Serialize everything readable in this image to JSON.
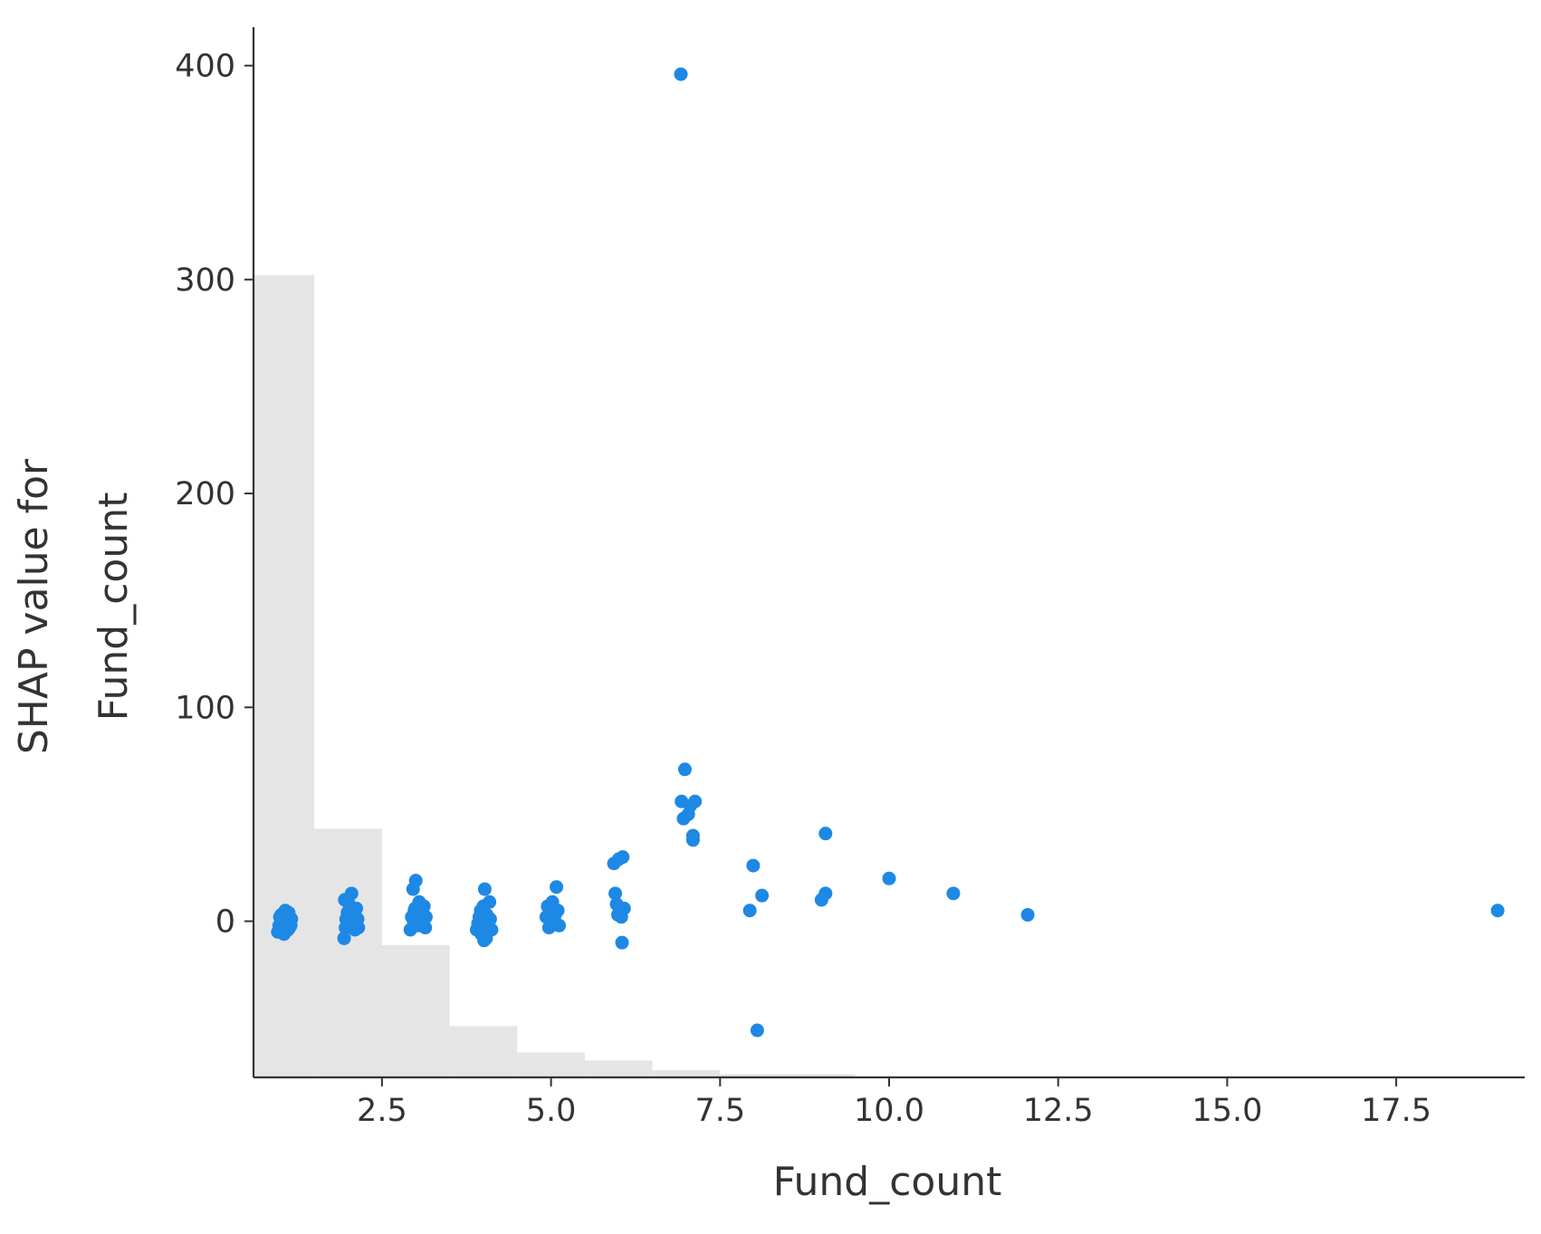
{
  "chart_data": {
    "type": "scatter",
    "title": "",
    "xlabel": "Fund_count",
    "ylabel_lines": [
      "SHAP value for",
      "Fund_count"
    ],
    "xlim": [
      0.6,
      19.4
    ],
    "ylim": [
      -73,
      418
    ],
    "x_ticks": [
      2.5,
      5.0,
      7.5,
      10.0,
      12.5,
      15.0,
      17.5
    ],
    "x_tick_labels": [
      "2.5",
      "5.0",
      "7.5",
      "10.0",
      "12.5",
      "15.0",
      "17.5"
    ],
    "y_ticks": [
      0,
      100,
      200,
      300,
      400
    ],
    "y_tick_labels": [
      "0",
      "100",
      "200",
      "300",
      "400"
    ],
    "grid": false,
    "point_color": "#1e88e5",
    "histogram_color": "#e5e5e5",
    "histogram": {
      "bin_edges": [
        0.5,
        1.5,
        2.5,
        3.5,
        4.5,
        5.5,
        6.5,
        7.5,
        8.5,
        9.5,
        10.5,
        11.5,
        12.5,
        19.5
      ],
      "relative_heights": [
        1.0,
        0.31,
        0.165,
        0.064,
        0.031,
        0.021,
        0.009,
        0.004,
        0.004,
        0.0,
        0.0,
        0.0,
        0.0
      ]
    },
    "points": [
      {
        "x": 0.98,
        "y": -2
      },
      {
        "x": 1.0,
        "y": -4
      },
      {
        "x": 1.02,
        "y": 0
      },
      {
        "x": 1.04,
        "y": -3
      },
      {
        "x": 1.06,
        "y": -1
      },
      {
        "x": 1.08,
        "y": 2
      },
      {
        "x": 1.1,
        "y": -2
      },
      {
        "x": 1.12,
        "y": 4
      },
      {
        "x": 1.14,
        "y": -1
      },
      {
        "x": 1.16,
        "y": 1
      },
      {
        "x": 0.96,
        "y": -5
      },
      {
        "x": 1.01,
        "y": 3
      },
      {
        "x": 1.05,
        "y": -6
      },
      {
        "x": 1.09,
        "y": 0
      },
      {
        "x": 1.13,
        "y": -3
      },
      {
        "x": 1.07,
        "y": 5
      },
      {
        "x": 1.11,
        "y": -4
      },
      {
        "x": 1.03,
        "y": 1
      },
      {
        "x": 1.15,
        "y": -2
      },
      {
        "x": 0.99,
        "y": 2
      },
      {
        "x": 1.94,
        "y": -8
      },
      {
        "x": 1.96,
        "y": -3
      },
      {
        "x": 1.97,
        "y": 1
      },
      {
        "x": 1.99,
        "y": 4
      },
      {
        "x": 2.0,
        "y": 9
      },
      {
        "x": 2.02,
        "y": 6
      },
      {
        "x": 2.04,
        "y": -2
      },
      {
        "x": 2.05,
        "y": 13
      },
      {
        "x": 2.07,
        "y": 0
      },
      {
        "x": 2.09,
        "y": 3
      },
      {
        "x": 2.1,
        "y": -4
      },
      {
        "x": 2.12,
        "y": 6
      },
      {
        "x": 2.14,
        "y": 1
      },
      {
        "x": 2.15,
        "y": -3
      },
      {
        "x": 1.95,
        "y": 10
      },
      {
        "x": 2.08,
        "y": -1
      },
      {
        "x": 2.92,
        "y": -4
      },
      {
        "x": 2.94,
        "y": 2
      },
      {
        "x": 2.96,
        "y": 15
      },
      {
        "x": 2.97,
        "y": -1
      },
      {
        "x": 2.99,
        "y": 6
      },
      {
        "x": 3.0,
        "y": 19
      },
      {
        "x": 3.02,
        "y": 3
      },
      {
        "x": 3.04,
        "y": -2
      },
      {
        "x": 3.05,
        "y": 9
      },
      {
        "x": 3.07,
        "y": 1
      },
      {
        "x": 3.09,
        "y": 4
      },
      {
        "x": 3.1,
        "y": 0
      },
      {
        "x": 3.12,
        "y": 7
      },
      {
        "x": 3.14,
        "y": -3
      },
      {
        "x": 3.15,
        "y": 2
      },
      {
        "x": 2.98,
        "y": 5
      },
      {
        "x": 3.06,
        "y": -1
      },
      {
        "x": 3.9,
        "y": -4
      },
      {
        "x": 3.92,
        "y": -1
      },
      {
        "x": 3.94,
        "y": 2
      },
      {
        "x": 3.96,
        "y": 5
      },
      {
        "x": 3.97,
        "y": -6
      },
      {
        "x": 3.99,
        "y": 0
      },
      {
        "x": 4.0,
        "y": 7
      },
      {
        "x": 4.02,
        "y": 15
      },
      {
        "x": 4.04,
        "y": -8
      },
      {
        "x": 4.05,
        "y": 3
      },
      {
        "x": 4.07,
        "y": -2
      },
      {
        "x": 4.09,
        "y": 9
      },
      {
        "x": 4.1,
        "y": 1
      },
      {
        "x": 4.12,
        "y": -4
      },
      {
        "x": 4.01,
        "y": -9
      },
      {
        "x": 4.93,
        "y": 2
      },
      {
        "x": 4.95,
        "y": 7
      },
      {
        "x": 4.97,
        "y": -3
      },
      {
        "x": 4.99,
        "y": 1
      },
      {
        "x": 5.0,
        "y": 4
      },
      {
        "x": 5.02,
        "y": 9
      },
      {
        "x": 5.04,
        "y": -1
      },
      {
        "x": 5.06,
        "y": 3
      },
      {
        "x": 5.08,
        "y": 16
      },
      {
        "x": 5.1,
        "y": 5
      },
      {
        "x": 5.12,
        "y": -2
      },
      {
        "x": 5.93,
        "y": 27
      },
      {
        "x": 5.95,
        "y": 13
      },
      {
        "x": 5.97,
        "y": 8
      },
      {
        "x": 5.99,
        "y": 3
      },
      {
        "x": 6.0,
        "y": 29
      },
      {
        "x": 6.02,
        "y": 5
      },
      {
        "x": 6.04,
        "y": 2
      },
      {
        "x": 6.06,
        "y": 30
      },
      {
        "x": 6.08,
        "y": 6
      },
      {
        "x": 6.05,
        "y": -10
      },
      {
        "x": 6.92,
        "y": 396
      },
      {
        "x": 6.93,
        "y": 56
      },
      {
        "x": 6.96,
        "y": 48
      },
      {
        "x": 6.98,
        "y": 71
      },
      {
        "x": 7.03,
        "y": 50
      },
      {
        "x": 7.06,
        "y": 54
      },
      {
        "x": 7.1,
        "y": 40
      },
      {
        "x": 7.1,
        "y": 38
      },
      {
        "x": 7.13,
        "y": 56
      },
      {
        "x": 7.94,
        "y": 5
      },
      {
        "x": 7.99,
        "y": 26
      },
      {
        "x": 8.05,
        "y": -51
      },
      {
        "x": 8.12,
        "y": 12
      },
      {
        "x": 9.0,
        "y": 10
      },
      {
        "x": 9.06,
        "y": 41
      },
      {
        "x": 9.06,
        "y": 13
      },
      {
        "x": 10.0,
        "y": 20
      },
      {
        "x": 10.95,
        "y": 13
      },
      {
        "x": 12.05,
        "y": 3
      },
      {
        "x": 19.0,
        "y": 5
      }
    ]
  }
}
